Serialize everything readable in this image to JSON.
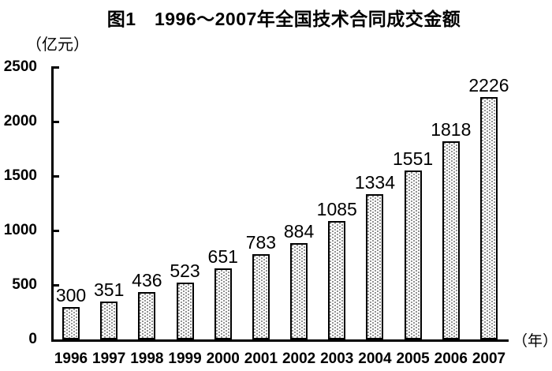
{
  "page": {
    "title": "图1　1996～2007年全国技术合同成交金额",
    "y_unit_label": "（亿元）",
    "x_unit_label": "（年）"
  },
  "chart_data": {
    "type": "bar",
    "title": "图1　1996～2007年全国技术合同成交金额",
    "categories": [
      "1996",
      "1997",
      "1998",
      "1999",
      "2000",
      "2001",
      "2002",
      "2003",
      "2004",
      "2005",
      "2006",
      "2007"
    ],
    "values": [
      300,
      351,
      436,
      523,
      651,
      783,
      884,
      1085,
      1334,
      1551,
      1818,
      2226
    ],
    "xlabel": "（年）",
    "ylabel": "（亿元）",
    "ylim": [
      0,
      2500
    ],
    "yticks": [
      0,
      500,
      1000,
      1500,
      2000,
      2500
    ],
    "grid": false,
    "legend": "none",
    "data_labels": true,
    "bar_style": {
      "fill": "#ffffff",
      "pattern": "dot-stipple",
      "border_color": "#000000"
    },
    "colors": {
      "axis": "#000000",
      "text": "#000000",
      "background": "#ffffff"
    }
  }
}
